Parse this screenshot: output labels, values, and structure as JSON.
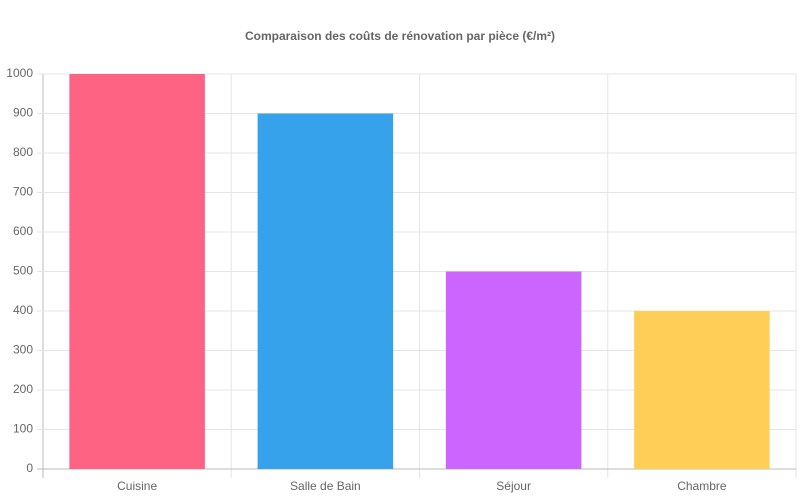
{
  "chart_data": {
    "type": "bar",
    "title": "Comparaison des coûts de rénovation par pièce (€/m²)",
    "categories": [
      "Cuisine",
      "Salle de Bain",
      "Séjour",
      "Chambre"
    ],
    "values": [
      1000,
      900,
      500,
      400
    ],
    "colors": [
      "#ff6384",
      "#36a2eb",
      "#cc65fe",
      "#ffce56"
    ],
    "ylim": [
      0,
      1000
    ],
    "yticks": [
      0,
      100,
      200,
      300,
      400,
      500,
      600,
      700,
      800,
      900,
      1000
    ],
    "grid": true
  }
}
